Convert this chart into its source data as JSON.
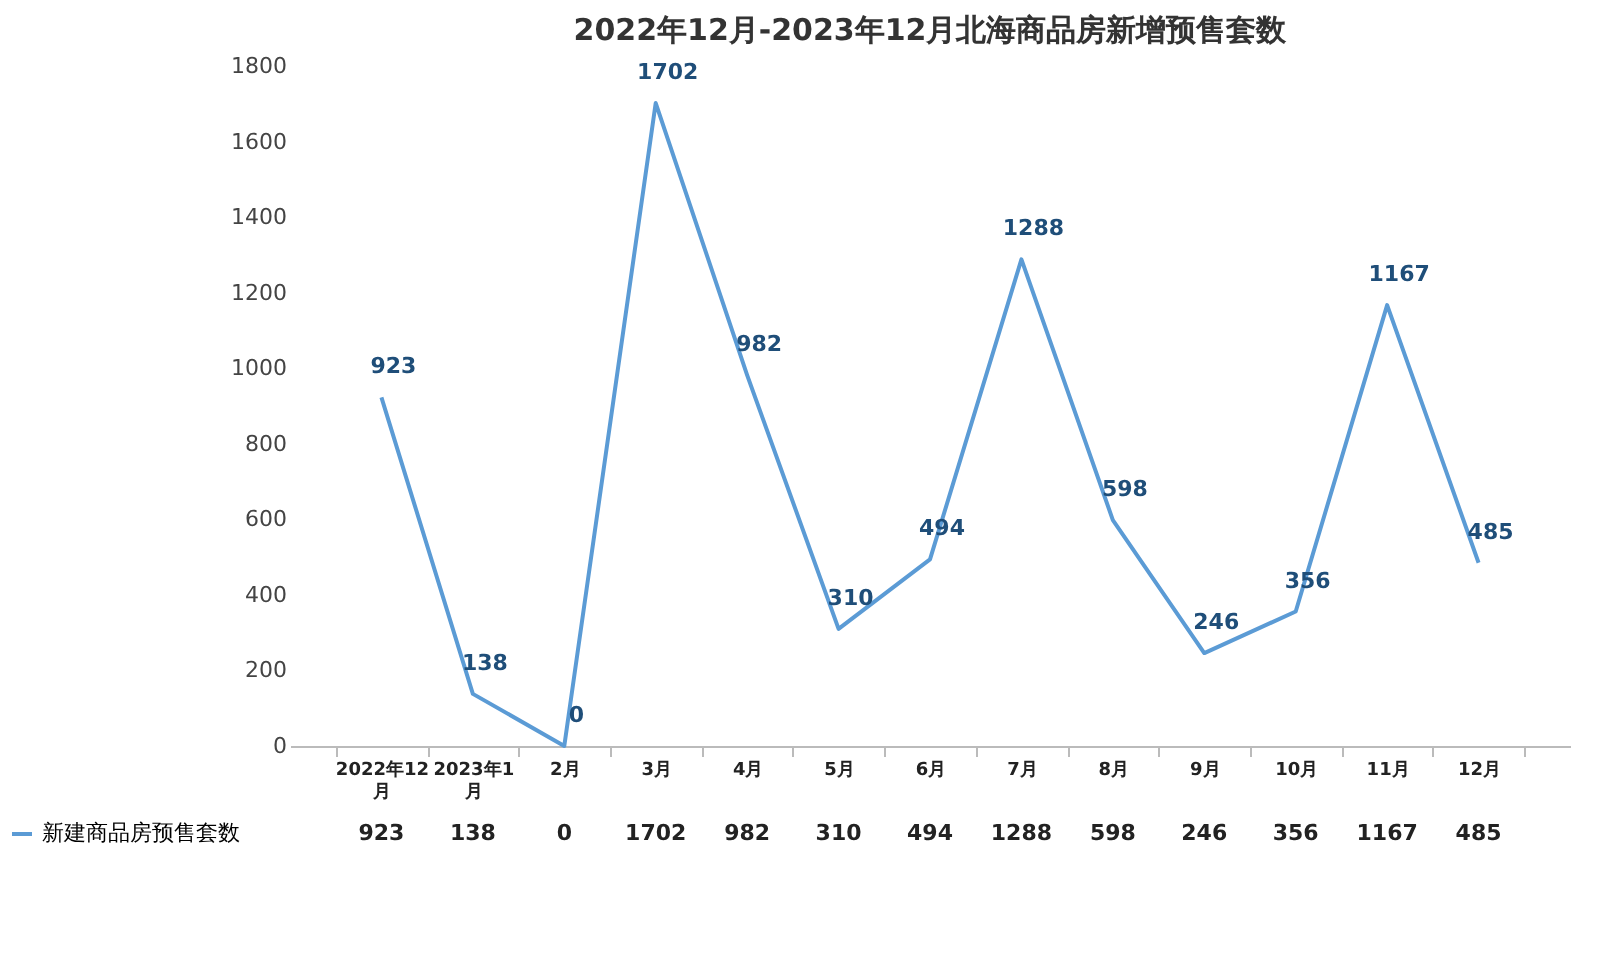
{
  "chart_data": {
    "type": "line",
    "title": "2022年12月-2023年12月北海商品房新增预售套数",
    "categories": [
      "2022年12月",
      "2023年1月",
      "2月",
      "3月",
      "4月",
      "5月",
      "6月",
      "7月",
      "8月",
      "9月",
      "10月",
      "11月",
      "12月"
    ],
    "series": [
      {
        "name": "新建商品房预售套数",
        "color": "#5b9bd5",
        "values": [
          923,
          138,
          0,
          1702,
          982,
          310,
          494,
          1288,
          598,
          246,
          356,
          1167,
          485
        ],
        "value_labels": [
          "923",
          "138",
          "0",
          "1702",
          "982",
          "310",
          "494",
          "1288",
          "598",
          "246",
          "356",
          "1167",
          "485"
        ]
      }
    ],
    "ylim": [
      0,
      1800
    ],
    "yticks": [
      0,
      200,
      400,
      600,
      800,
      1000,
      1200,
      1400,
      1600,
      1800
    ],
    "grid": false,
    "legend": "bottom",
    "data_labels": true,
    "marker": "none",
    "line_style": "solid"
  }
}
